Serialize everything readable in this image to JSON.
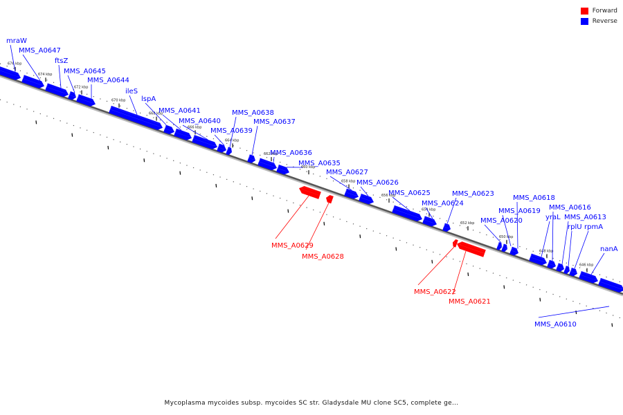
{
  "legend": [
    {
      "label": "Forward",
      "color": "#ff0000"
    },
    {
      "label": "Reverse",
      "color": "#0000ff"
    }
  ],
  "caption": "Mycoplasma mycoides subsp. mycoides SC str. Gladysdale MU clone SC5, complete ge...",
  "kbp_ticks": [
    "676 kbp",
    "674 kbp",
    "672 kbp",
    "670 kbp",
    "668 kbp",
    "666 kbp",
    "664 kbp",
    "662 kbp",
    "660 kbp",
    "658 kbp",
    "656 kbp",
    "654 kbp",
    "652 kbp",
    "650 kbp",
    "648 kbp",
    "646 kbp"
  ],
  "genes": [
    {
      "label": "mraW",
      "strand": "reverse"
    },
    {
      "label": "MMS_A0647",
      "strand": "reverse"
    },
    {
      "label": "ftsZ",
      "strand": "reverse"
    },
    {
      "label": "MMS_A0645",
      "strand": "reverse"
    },
    {
      "label": "MMS_A0644",
      "strand": "reverse"
    },
    {
      "label": "ileS",
      "strand": "reverse"
    },
    {
      "label": "lspA",
      "strand": "reverse"
    },
    {
      "label": "MMS_A0641",
      "strand": "reverse"
    },
    {
      "label": "MMS_A0640",
      "strand": "reverse"
    },
    {
      "label": "MMS_A0639",
      "strand": "reverse"
    },
    {
      "label": "MMS_A0638",
      "strand": "reverse"
    },
    {
      "label": "MMS_A0637",
      "strand": "reverse"
    },
    {
      "label": "MMS_A0636",
      "strand": "reverse"
    },
    {
      "label": "MMS_A0635",
      "strand": "reverse"
    },
    {
      "label": "MMS_A0627",
      "strand": "reverse"
    },
    {
      "label": "MMS_A0626",
      "strand": "reverse"
    },
    {
      "label": "MMS_A0625",
      "strand": "reverse"
    },
    {
      "label": "MMS_A0624",
      "strand": "reverse"
    },
    {
      "label": "MMS_A0623",
      "strand": "reverse"
    },
    {
      "label": "MMS_A0620",
      "strand": "reverse"
    },
    {
      "label": "MMS_A0619",
      "strand": "reverse"
    },
    {
      "label": "MMS_A0618",
      "strand": "reverse"
    },
    {
      "label": "yraL",
      "strand": "reverse"
    },
    {
      "label": "MMS_A0616",
      "strand": "reverse"
    },
    {
      "label": "MMS_A0613",
      "strand": "reverse"
    },
    {
      "label": "rplU",
      "strand": "reverse"
    },
    {
      "label": "rpmA",
      "strand": "reverse"
    },
    {
      "label": "nanA",
      "strand": "reverse"
    },
    {
      "label": "MMS_A0610",
      "strand": "reverse"
    },
    {
      "label": "MMS_A0629",
      "strand": "forward"
    },
    {
      "label": "MMS_A0628",
      "strand": "forward"
    },
    {
      "label": "MMS_A0622",
      "strand": "forward"
    },
    {
      "label": "MMS_A0621",
      "strand": "forward"
    }
  ]
}
